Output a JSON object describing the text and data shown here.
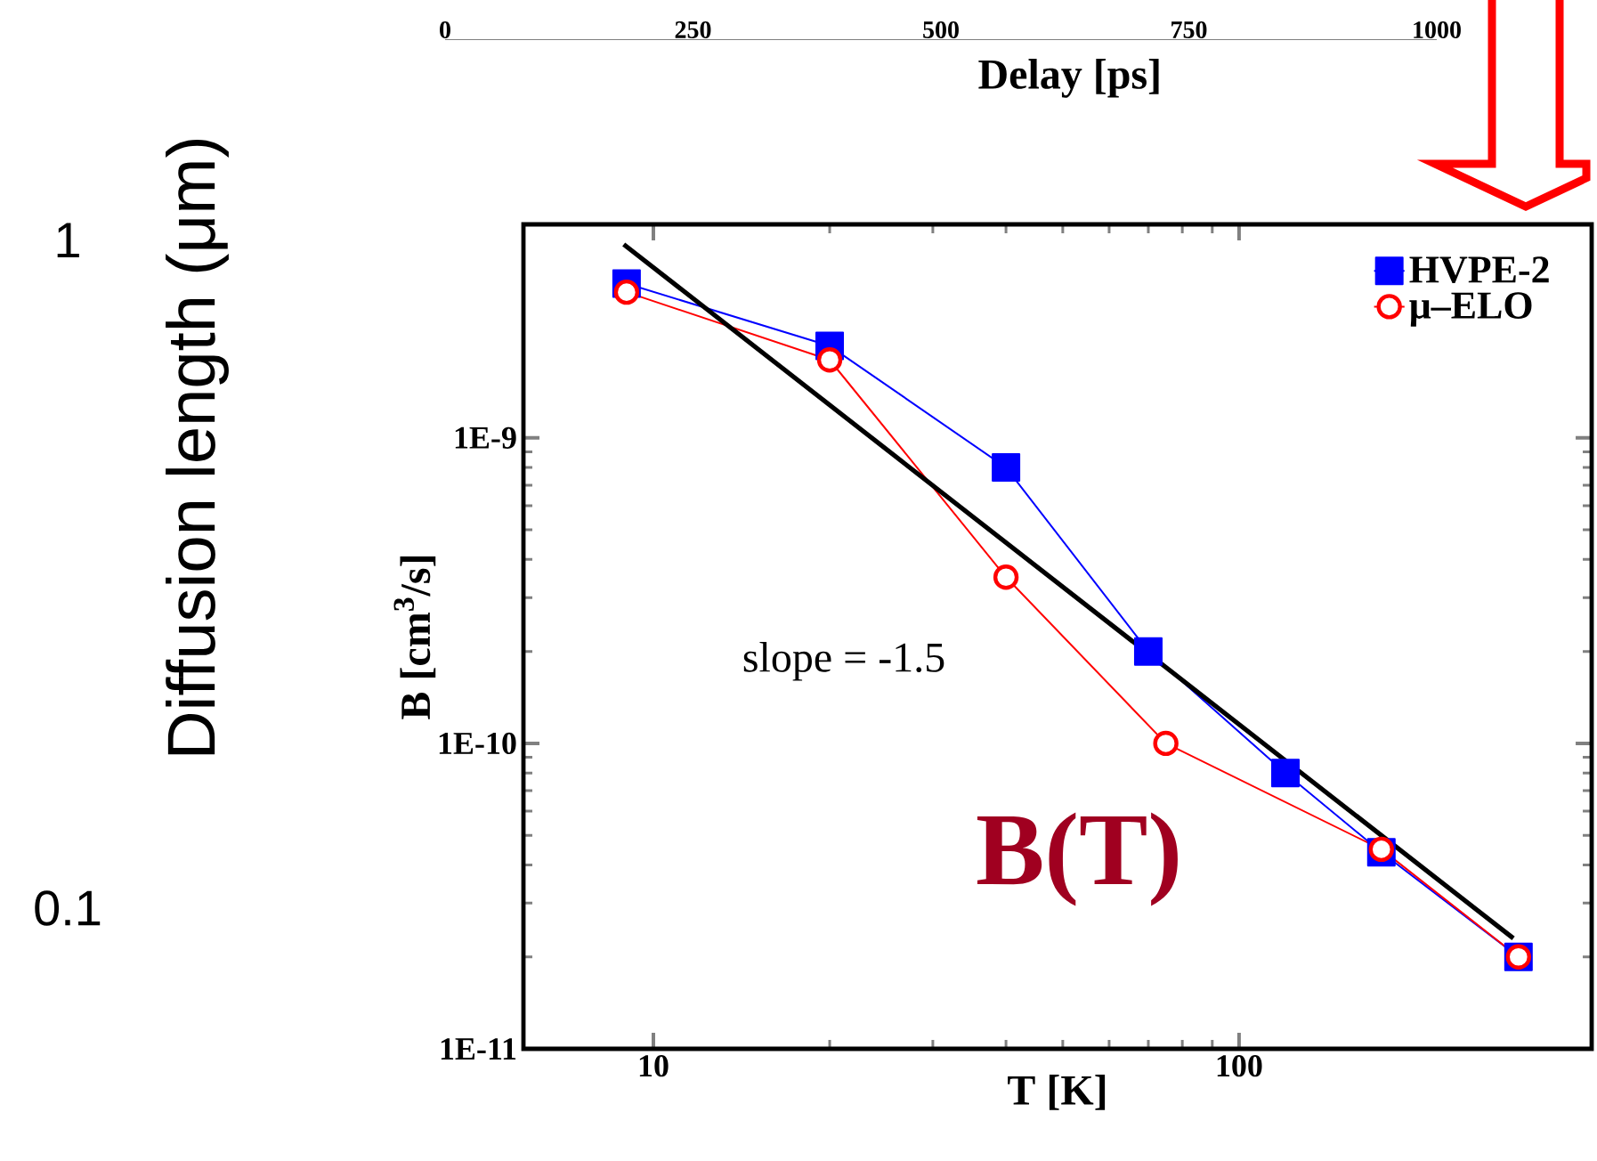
{
  "chart_data": [
    {
      "type": "line",
      "xlabel": "Delay [ps]",
      "ylabel": "Diffusion length (μm)",
      "xlim": [
        0,
        1000
      ],
      "xticks": [
        0,
        250,
        500,
        750,
        1000
      ],
      "ylim": [
        0.1,
        2
      ],
      "yticks": [
        1,
        0.1
      ],
      "log": "y",
      "grid": false,
      "legend": false
    },
    {
      "type": "line",
      "xlabel": "T [K]",
      "ylabel": "B [cm$^{3}$/s]",
      "log": "xy",
      "xlim": [
        6,
        400
      ],
      "xticks": [
        10,
        100
      ],
      "ylim": [
        1e-11,
        5e-09
      ],
      "yticks": [
        {
          "value": 1e-11,
          "label": "1E-11"
        },
        {
          "value": 1e-10,
          "label": "1E-10"
        },
        {
          "value": 1e-09,
          "label": "1E-9"
        }
      ],
      "grid": false,
      "legend": "top right",
      "series": [
        {
          "name": "HVPE-2",
          "color": "#0000ff",
          "marker": "square",
          "line_style": "solid",
          "x": [
            9,
            20,
            40,
            70,
            120,
            175,
            300
          ],
          "values": [
            3.2e-09,
            2e-09,
            8e-10,
            2e-10,
            8e-11,
            4.4e-11,
            2e-11
          ]
        },
        {
          "name": "μ–ELO",
          "color": "#ff0000",
          "marker": "circle",
          "line_style": "solid",
          "x": [
            9,
            20,
            40,
            75,
            175,
            300
          ],
          "values": [
            3e-09,
            1.8e-09,
            3.5e-10,
            1e-10,
            4.5e-11,
            2e-11
          ]
        },
        {
          "color": "#000000",
          "marker": "none",
          "line_style": "solid",
          "x": [
            8.9,
            294
          ],
          "values": [
            4.3e-09,
            2.3e-11
          ]
        }
      ],
      "annotations": [
        "slope = -1.5",
        "B(T)"
      ]
    }
  ]
}
